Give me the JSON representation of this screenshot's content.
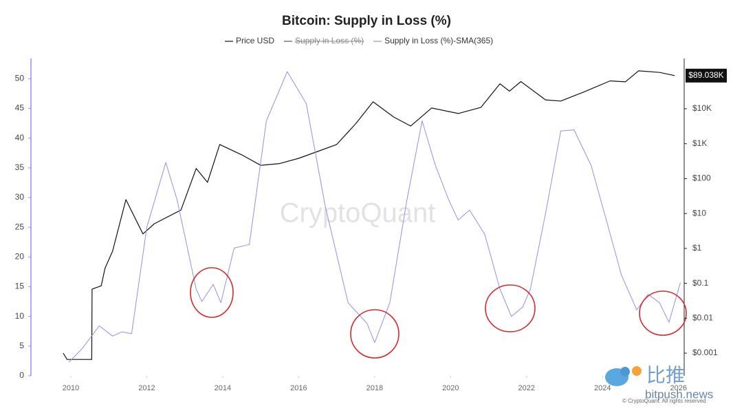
{
  "chart_data": {
    "type": "line",
    "title": "Bitcoin: Supply in Loss (%)",
    "xlim": [
      2008.95,
      2026.15
    ],
    "xticks": [
      2010,
      2012,
      2014,
      2016,
      2018,
      2020,
      2022,
      2024,
      2026
    ],
    "ylim": [
      0,
      53.4
    ],
    "yticks": [
      0,
      5,
      10,
      15,
      20,
      25,
      30,
      35,
      40,
      45,
      50
    ],
    "y2lim": [
      0.000224,
      275000
    ],
    "y2scale": "log",
    "y2ticks": [
      {
        "value": 0.001,
        "label": "$0.001"
      },
      {
        "value": 0.01,
        "label": "$0.01"
      },
      {
        "value": 0.1,
        "label": "$0.1"
      },
      {
        "value": 1,
        "label": "$1"
      },
      {
        "value": 10,
        "label": "$10"
      },
      {
        "value": 100,
        "label": "$100"
      },
      {
        "value": 1000,
        "label": "$1K"
      },
      {
        "value": 10000,
        "label": "$10K"
      }
    ],
    "grid": false,
    "series": [
      {
        "name": "Price USD",
        "color": "#111111",
        "axis": "y2",
        "x": [
          2009.8,
          2009.9,
          2010.55,
          2010.56,
          2010.8,
          2010.9,
          2011.1,
          2011.45,
          2011.9,
          2012.2,
          2012.9,
          2013.3,
          2013.6,
          2013.92,
          2014.5,
          2015.0,
          2015.5,
          2016.0,
          2016.5,
          2017.0,
          2017.5,
          2017.96,
          2018.5,
          2018.95,
          2019.5,
          2020.2,
          2020.8,
          2021.3,
          2021.55,
          2021.85,
          2022.5,
          2022.9,
          2023.5,
          2024.2,
          2024.6,
          2024.95,
          2025.5,
          2025.9
        ],
        "values": [
          0.001,
          0.00066,
          0.00066,
          0.068,
          0.085,
          0.27,
          0.83,
          25,
          2.6,
          5.1,
          12.6,
          194,
          78,
          950,
          480,
          240,
          270,
          380,
          600,
          950,
          3700,
          15800,
          5800,
          3200,
          10500,
          7300,
          11000,
          52000,
          32000,
          60000,
          18000,
          16600,
          30000,
          63000,
          59000,
          122000,
          110000,
          89038
        ],
        "last_value_label": "$89.038K"
      },
      {
        "name": "Supply in Loss (%)",
        "color": "#999999",
        "hidden": true
      },
      {
        "name": "Supply in Loss (%)-SMA(365)",
        "color": "#8f8ff0",
        "x": [
          2009.95,
          2010.3,
          2010.75,
          2011.1,
          2011.35,
          2011.6,
          2012.0,
          2012.5,
          2012.8,
          2013.3,
          2013.45,
          2013.75,
          2013.95,
          2014.3,
          2014.7,
          2015.15,
          2015.7,
          2016.2,
          2016.7,
          2017.3,
          2017.8,
          2018.0,
          2018.4,
          2018.85,
          2019.25,
          2019.6,
          2019.95,
          2020.2,
          2020.5,
          2020.9,
          2021.3,
          2021.6,
          2021.9,
          2022.1,
          2022.5,
          2022.9,
          2023.25,
          2023.7,
          2024.1,
          2024.5,
          2024.9,
          2025.2,
          2025.5,
          2025.75,
          2026.05
        ],
        "values": [
          2.3,
          4.6,
          8.4,
          6.7,
          7.4,
          7.1,
          25,
          35.9,
          29.6,
          14.6,
          12.5,
          15.4,
          12.3,
          21.5,
          22.1,
          42.9,
          51.2,
          45.8,
          28.5,
          12.3,
          8.8,
          5.6,
          12.3,
          29.6,
          42.9,
          35.4,
          29.6,
          26.2,
          27.9,
          23.8,
          14.6,
          10.0,
          11.6,
          14.6,
          27.3,
          41.2,
          41.4,
          35.4,
          26.2,
          16.9,
          11.1,
          13.7,
          12.3,
          9.0,
          15.7
        ]
      }
    ],
    "watermark": "CryptoQuant",
    "credit": "© CryptoQuant. All rights reserved",
    "overlay_brand": "比推",
    "overlay_site": "bitpush.news"
  }
}
